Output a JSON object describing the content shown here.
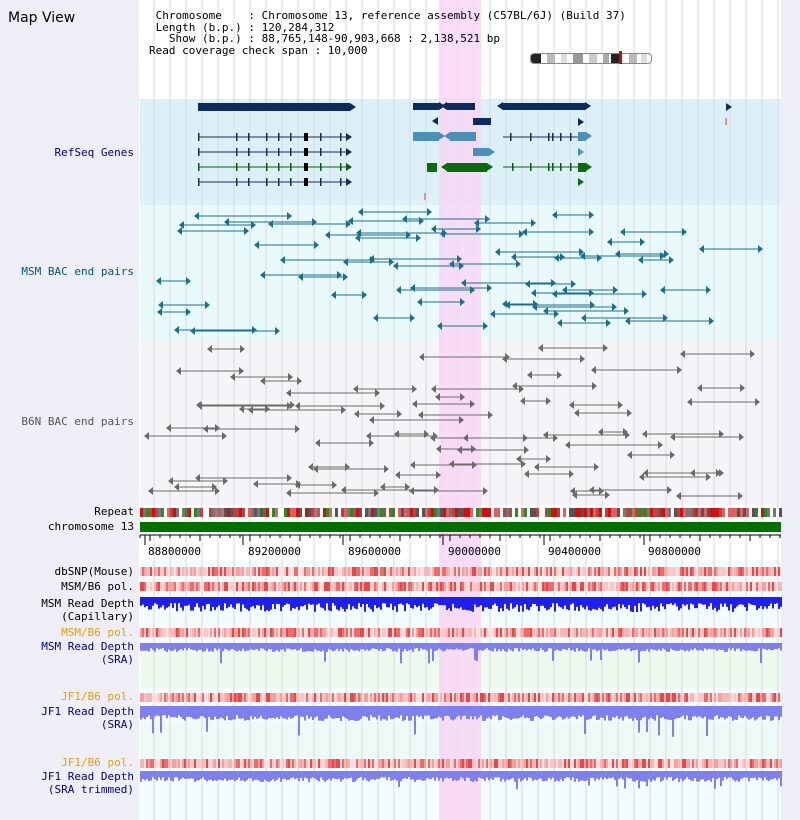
{
  "title": "Map View",
  "info": {
    "chromosome_line": " Chromosome    : Chromosome 13, reference assembly (C57BL/6J) (Build 37)",
    "length_line": " Length (b.p.) : 120,284,312",
    "show_line": "   Show (b.p.) : 88,765,148-90,903,668 : 2,138,521 bp",
    "coverage_line": "Read coverage check span : 10,000"
  },
  "tracks": {
    "refseq": "RefSeq Genes",
    "msm_bac": "MSM BAC end pairs",
    "b6n_bac": "B6N BAC end pairs",
    "repeat": "Repeat",
    "chromosome": "chromosome 13",
    "dbsnp": "dbSNP(Mouse)",
    "msm_b6_pol": "MSM/B6 pol.",
    "msm_depth_1": "MSM Read Depth",
    "msm_depth_2": "(Capillary)",
    "msm_b6_pol_sra": "MSM/B6 pol.",
    "msm_sra_1": "MSM Read Depth",
    "msm_sra_2": "(SRA)",
    "jf1_pol": "JF1/B6 pol.",
    "jf1_depth_1": "JF1 Read Depth",
    "jf1_depth_2": "(SRA)",
    "jf1_pol_trim": "JF1/B6 pol.",
    "jf1_trim_1": "JF1 Read Depth",
    "jf1_trim_2": "(SRA trimmed)"
  },
  "ruler": {
    "ticks": [
      "88800000",
      "89200000",
      "89600000",
      "90000000",
      "90400000",
      "90800000"
    ]
  },
  "colors": {
    "panel": "#eeeef7",
    "refseq_bg": "#dcf0f8",
    "msm_bg": "#e8fafa",
    "b6n_bg": "#f5f5f8",
    "highlight": "#f8d6f4",
    "gene_navy": "#0c2a5c",
    "gene_blue": "#4a90b8",
    "gene_green": "#0b6b0b",
    "msm_line": "#1a6e8e",
    "b6n_line": "#6a6a6a",
    "chrom_green": "#007000",
    "depth_blue": "#1f1ff0",
    "sra_blue": "#7f7fee",
    "snp_red": "#e84848",
    "orange_label": "#e8a000",
    "navy_label": "#000088",
    "teal_label": "#005577"
  }
}
